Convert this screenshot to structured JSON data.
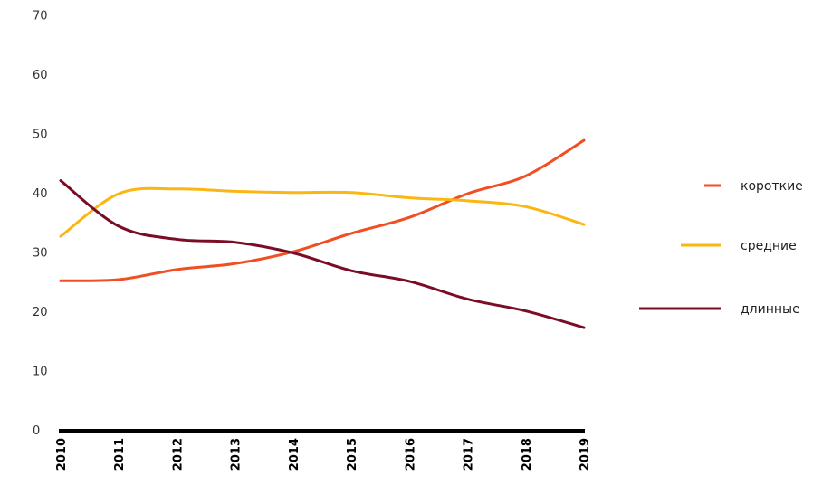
{
  "chart_data": {
    "type": "line",
    "categories": [
      "2010",
      "2011",
      "2012",
      "2013",
      "2014",
      "2015",
      "2016",
      "2017",
      "2018",
      "2019"
    ],
    "yticks": [
      "0",
      "10",
      "20",
      "30",
      "40",
      "50",
      "60",
      "70"
    ],
    "ylim": [
      0,
      70
    ],
    "grid": false,
    "legend_position": "right",
    "series": [
      {
        "name": "короткие",
        "color": "#f04e23",
        "values": [
          25.3,
          25.5,
          27.2,
          28.2,
          30.2,
          33.3,
          36,
          40,
          43,
          49
        ]
      },
      {
        "name": "средние",
        "color": "#fbb711",
        "values": [
          32.8,
          40,
          40.8,
          40.4,
          40.2,
          40.2,
          39.3,
          38.8,
          37.8,
          34.8
        ]
      },
      {
        "name": "длинные",
        "color": "#7a0d25",
        "values": [
          42.2,
          34.5,
          32.3,
          31.8,
          30,
          27,
          25.2,
          22.2,
          20.2,
          17.4
        ]
      }
    ]
  }
}
